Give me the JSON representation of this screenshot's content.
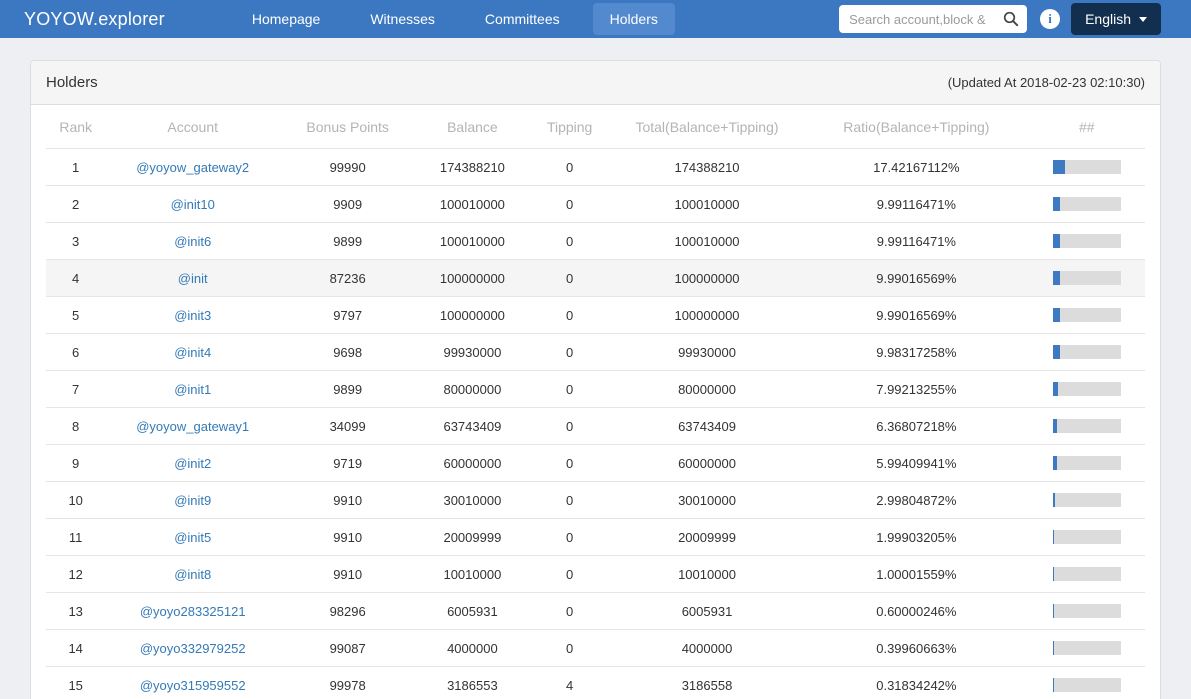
{
  "navbar": {
    "brand": "YOYOW.explorer",
    "items": [
      {
        "label": "Homepage",
        "active": false
      },
      {
        "label": "Witnesses",
        "active": false
      },
      {
        "label": "Committees",
        "active": false
      },
      {
        "label": "Holders",
        "active": true
      }
    ],
    "search": {
      "placeholder": "Search account,block &"
    },
    "info_icon": "info-circle",
    "language": {
      "label": "English"
    }
  },
  "panel": {
    "title": "Holders",
    "updated_at": "(Updated At 2018-02-23 02:10:30)"
  },
  "table": {
    "columns": [
      "Rank",
      "Account",
      "Bonus Points",
      "Balance",
      "Tipping",
      "Total(Balance+Tipping)",
      "Ratio(Balance+Tipping)",
      "##"
    ],
    "rows": [
      {
        "rank": "1",
        "account": "@yoyow_gateway2",
        "bonus_points": "99990",
        "balance": "174388210",
        "tipping": "0",
        "total": "174388210",
        "ratio": "17.42167112%",
        "ratio_value": 17.42167112,
        "highlight": false
      },
      {
        "rank": "2",
        "account": "@init10",
        "bonus_points": "9909",
        "balance": "100010000",
        "tipping": "0",
        "total": "100010000",
        "ratio": "9.99116471%",
        "ratio_value": 9.99116471,
        "highlight": false
      },
      {
        "rank": "3",
        "account": "@init6",
        "bonus_points": "9899",
        "balance": "100010000",
        "tipping": "0",
        "total": "100010000",
        "ratio": "9.99116471%",
        "ratio_value": 9.99116471,
        "highlight": false
      },
      {
        "rank": "4",
        "account": "@init",
        "bonus_points": "87236",
        "balance": "100000000",
        "tipping": "0",
        "total": "100000000",
        "ratio": "9.99016569%",
        "ratio_value": 9.99016569,
        "highlight": true
      },
      {
        "rank": "5",
        "account": "@init3",
        "bonus_points": "9797",
        "balance": "100000000",
        "tipping": "0",
        "total": "100000000",
        "ratio": "9.99016569%",
        "ratio_value": 9.99016569,
        "highlight": false
      },
      {
        "rank": "6",
        "account": "@init4",
        "bonus_points": "9698",
        "balance": "99930000",
        "tipping": "0",
        "total": "99930000",
        "ratio": "9.98317258%",
        "ratio_value": 9.98317258,
        "highlight": false
      },
      {
        "rank": "7",
        "account": "@init1",
        "bonus_points": "9899",
        "balance": "80000000",
        "tipping": "0",
        "total": "80000000",
        "ratio": "7.99213255%",
        "ratio_value": 7.99213255,
        "highlight": false
      },
      {
        "rank": "8",
        "account": "@yoyow_gateway1",
        "bonus_points": "34099",
        "balance": "63743409",
        "tipping": "0",
        "total": "63743409",
        "ratio": "6.36807218%",
        "ratio_value": 6.36807218,
        "highlight": false
      },
      {
        "rank": "9",
        "account": "@init2",
        "bonus_points": "9719",
        "balance": "60000000",
        "tipping": "0",
        "total": "60000000",
        "ratio": "5.99409941%",
        "ratio_value": 5.99409941,
        "highlight": false
      },
      {
        "rank": "10",
        "account": "@init9",
        "bonus_points": "9910",
        "balance": "30010000",
        "tipping": "0",
        "total": "30010000",
        "ratio": "2.99804872%",
        "ratio_value": 2.99804872,
        "highlight": false
      },
      {
        "rank": "11",
        "account": "@init5",
        "bonus_points": "9910",
        "balance": "20009999",
        "tipping": "0",
        "total": "20009999",
        "ratio": "1.99903205%",
        "ratio_value": 1.99903205,
        "highlight": false
      },
      {
        "rank": "12",
        "account": "@init8",
        "bonus_points": "9910",
        "balance": "10010000",
        "tipping": "0",
        "total": "10010000",
        "ratio": "1.00001559%",
        "ratio_value": 1.00001559,
        "highlight": false
      },
      {
        "rank": "13",
        "account": "@yoyo283325121",
        "bonus_points": "98296",
        "balance": "6005931",
        "tipping": "0",
        "total": "6005931",
        "ratio": "0.60000246%",
        "ratio_value": 0.60000246,
        "highlight": false
      },
      {
        "rank": "14",
        "account": "@yoyo332979252",
        "bonus_points": "99087",
        "balance": "4000000",
        "tipping": "0",
        "total": "4000000",
        "ratio": "0.39960663%",
        "ratio_value": 0.39960663,
        "highlight": false
      },
      {
        "rank": "15",
        "account": "@yoyo315959552",
        "bonus_points": "99978",
        "balance": "3186553",
        "tipping": "4",
        "total": "3186558",
        "ratio": "0.31834242%",
        "ratio_value": 0.31834242,
        "highlight": false
      }
    ]
  },
  "colors": {
    "navbar_bg": "#3c78c2",
    "nav_active_bg": "#5289cf",
    "lang_btn_bg": "#132f4f",
    "link": "#337ab7",
    "bar_fill": "#3d7ac1",
    "bar_track": "#dcdcdc",
    "header_text": "#b4b4b4",
    "row_highlight": "#f5f5f5"
  }
}
